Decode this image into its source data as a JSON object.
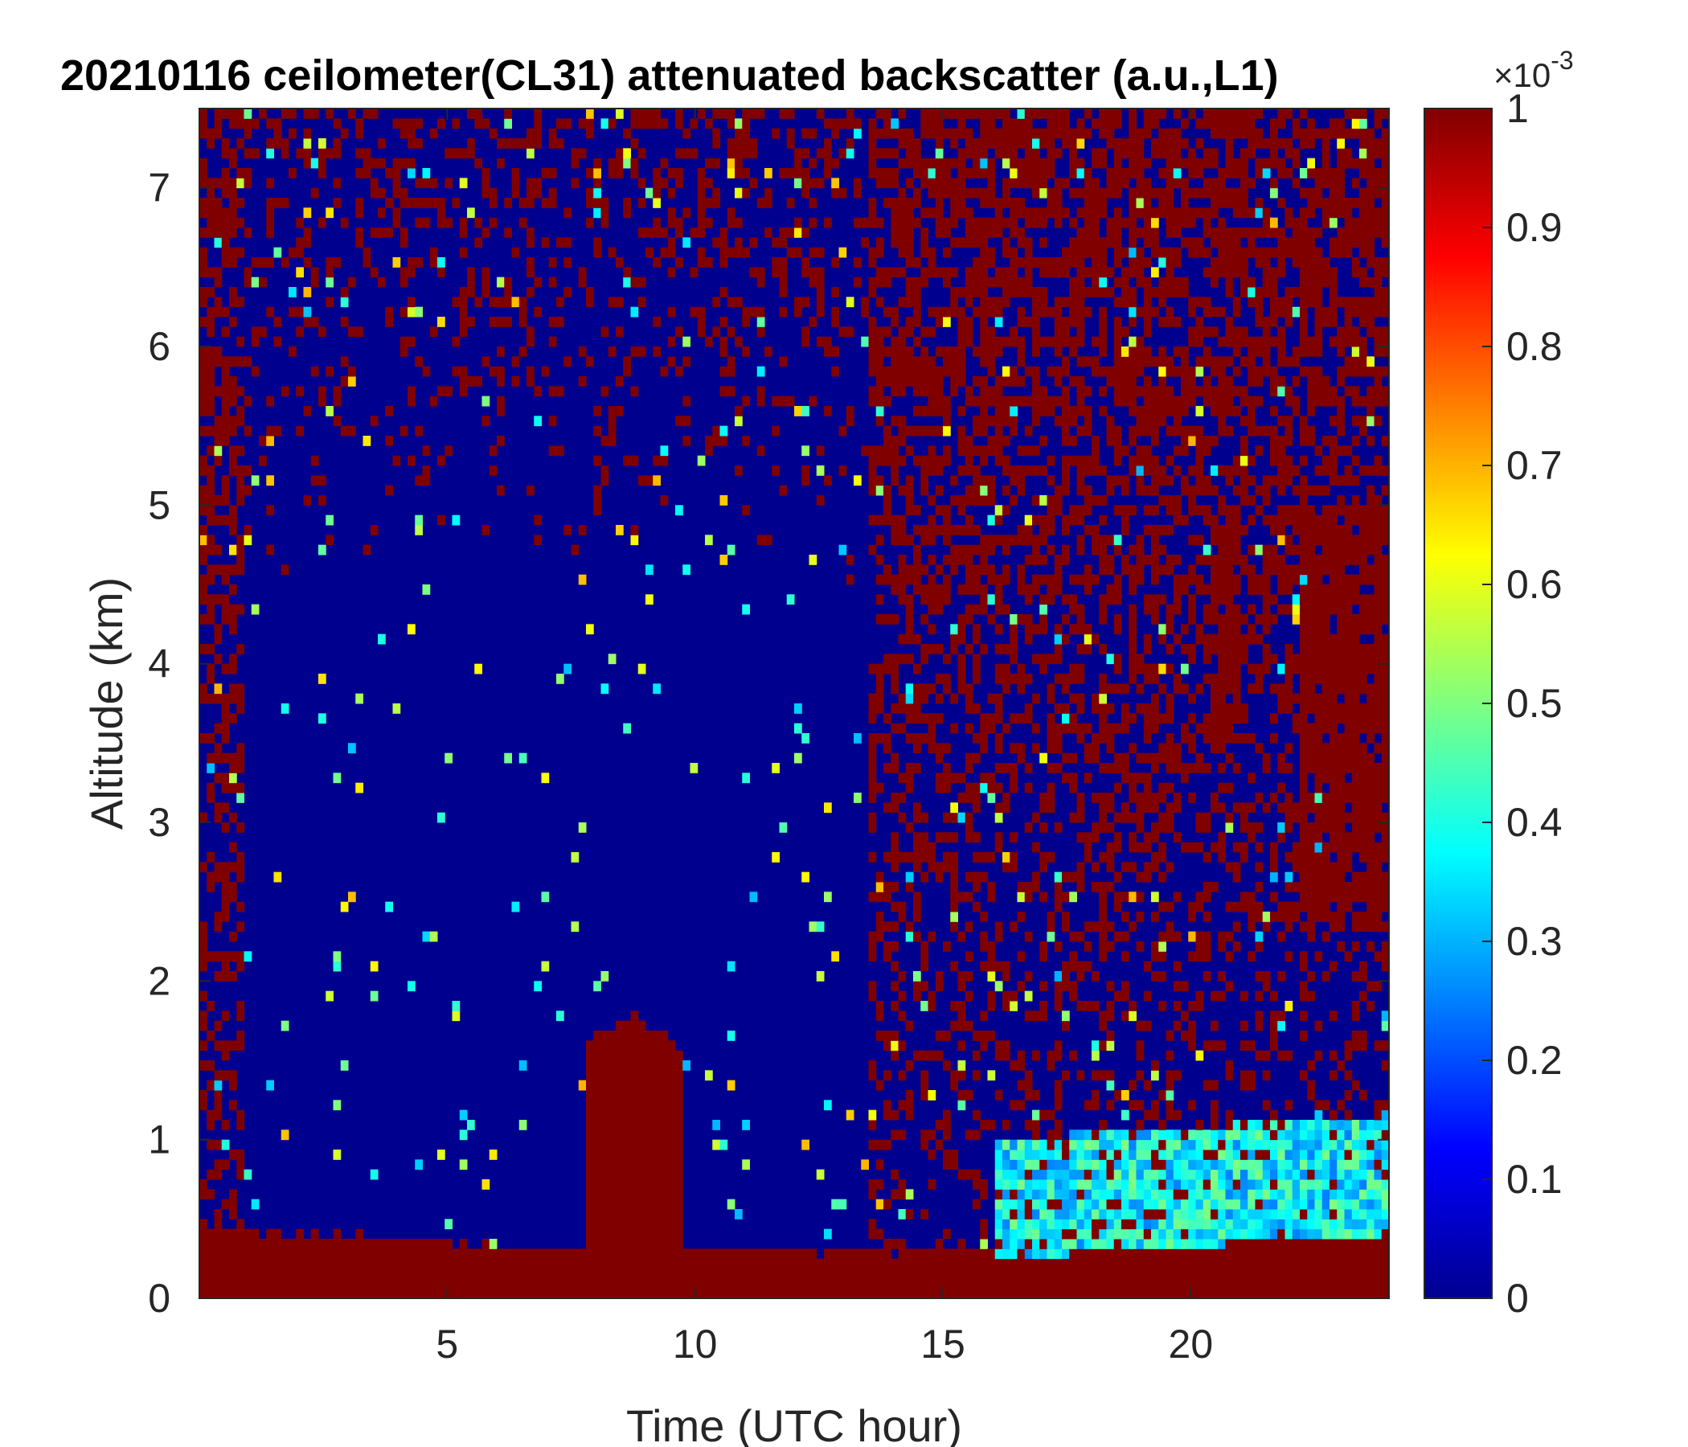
{
  "chart_data": {
    "type": "heatmap",
    "title": "20210116 ceilometer(CL31) attenuated backscatter (a.u.,L1)",
    "xlabel": "Time (UTC hour)",
    "ylabel": "Altitude (km)",
    "xlim": [
      0,
      24
    ],
    "ylim": [
      0,
      7.5
    ],
    "xticks": [
      5,
      10,
      15,
      20
    ],
    "yticks": [
      0,
      1,
      2,
      3,
      4,
      5,
      6,
      7
    ],
    "colorbar": {
      "label_exponent": "×10-3",
      "multiplier_base": "×10",
      "multiplier_exponent": "-3",
      "range": [
        0,
        1
      ],
      "ticks": [
        0,
        0.1,
        0.2,
        0.3,
        0.4,
        0.5,
        0.6,
        0.7,
        0.8,
        0.9,
        1
      ],
      "colormap": "jet"
    },
    "features": [
      {
        "name": "surface aerosol layer",
        "x": [
          0,
          7.8
        ],
        "top_km": [
          0.45,
          0.3
        ],
        "value": 1.0
      },
      {
        "name": "aerosol plume",
        "x": [
          7.8,
          9.7
        ],
        "top_km": [
          1.8,
          1.8
        ],
        "value": 1.0
      },
      {
        "name": "surface aerosol layer",
        "x": [
          9.7,
          16
        ],
        "top_km": [
          0.3,
          0.3
        ],
        "value": 1.0
      },
      {
        "name": "noisy boundary layer",
        "x": [
          16,
          24
        ],
        "top_km": [
          1.2,
          1.0
        ],
        "value": 0.35
      },
      {
        "name": "elevated layer",
        "x": [
          20.5,
          24
        ],
        "top_km": [
          5.0,
          4.5
        ],
        "value": 1.0
      }
    ],
    "grid": false
  }
}
